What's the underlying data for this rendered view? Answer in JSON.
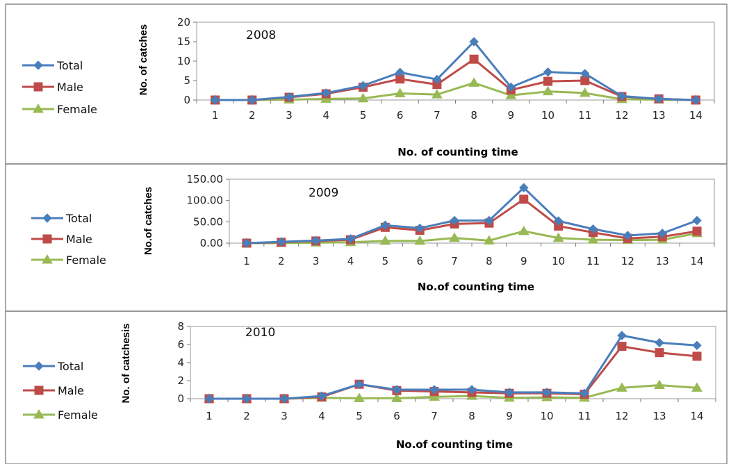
{
  "chart_data": [
    {
      "type": "line",
      "title": "2008",
      "xlabel": "No. of counting time",
      "ylabel": "No. of catches",
      "categories": [
        "1",
        "2",
        "3",
        "4",
        "5",
        "6",
        "7",
        "8",
        "9",
        "10",
        "11",
        "12",
        "13",
        "14"
      ],
      "ylim": [
        0,
        20
      ],
      "yticks": [
        "0",
        "5",
        "10",
        "15",
        "20"
      ],
      "grid": false,
      "legend_position": "left",
      "series": [
        {
          "name": "Total",
          "color": "#4a7ebb",
          "marker": "diamond",
          "values": [
            0,
            0,
            0.8,
            1.8,
            3.7,
            7.1,
            5.3,
            15.0,
            3.3,
            7.2,
            6.8,
            1.0,
            0.3,
            0
          ]
        },
        {
          "name": "Male",
          "color": "#be4b48",
          "marker": "square",
          "values": [
            0,
            0,
            0.7,
            1.6,
            3.3,
            5.4,
            4.0,
            10.5,
            2.6,
            4.8,
            5.0,
            0.9,
            0.3,
            0
          ]
        },
        {
          "name": "Female",
          "color": "#98b954",
          "marker": "triangle",
          "values": [
            0,
            0,
            0.1,
            0.3,
            0.4,
            1.7,
            1.4,
            4.4,
            1.2,
            2.2,
            1.8,
            0.2,
            0.1,
            0
          ]
        }
      ]
    },
    {
      "type": "line",
      "title": "2009",
      "xlabel": "No.of counting time",
      "ylabel": "No.of catches",
      "categories": [
        "1",
        "2",
        "3",
        "4",
        "5",
        "6",
        "7",
        "8",
        "9",
        "10",
        "11",
        "12",
        "13",
        "14"
      ],
      "ylim": [
        0,
        150
      ],
      "yticks": [
        "0.00",
        "50.00",
        "100.00",
        "150.00"
      ],
      "grid": false,
      "legend_position": "left",
      "series": [
        {
          "name": "Total",
          "color": "#4a7ebb",
          "marker": "diamond",
          "values": [
            0,
            3,
            6,
            10,
            42,
            35,
            53,
            53,
            130,
            52,
            33,
            18,
            23,
            53
          ]
        },
        {
          "name": "Male",
          "color": "#be4b48",
          "marker": "square",
          "values": [
            0,
            2,
            5,
            8,
            37,
            30,
            45,
            47,
            103,
            40,
            25,
            11,
            15,
            28
          ]
        },
        {
          "name": "Female",
          "color": "#98b954",
          "marker": "triangle",
          "values": [
            0,
            0,
            1,
            2,
            5,
            5,
            12,
            6,
            28,
            12,
            8,
            7,
            8,
            23
          ]
        }
      ]
    },
    {
      "type": "line",
      "title": "2010",
      "xlabel": "No.of counting time",
      "ylabel": "No. of catchesis",
      "categories": [
        "1",
        "2",
        "3",
        "4",
        "5",
        "6",
        "7",
        "8",
        "9",
        "10",
        "11",
        "12",
        "13",
        "14"
      ],
      "ylim": [
        0,
        8
      ],
      "yticks": [
        "0",
        "2",
        "4",
        "6",
        "8"
      ],
      "grid": false,
      "legend_position": "left",
      "series": [
        {
          "name": "Total",
          "color": "#4a7ebb",
          "marker": "diamond",
          "values": [
            0,
            0,
            0,
            0.3,
            1.6,
            1.0,
            1.0,
            1.0,
            0.7,
            0.7,
            0.6,
            7.0,
            6.2,
            5.9
          ]
        },
        {
          "name": "Male",
          "color": "#be4b48",
          "marker": "square",
          "values": [
            0,
            0,
            0,
            0.2,
            1.6,
            0.9,
            0.8,
            0.7,
            0.6,
            0.6,
            0.5,
            5.8,
            5.1,
            4.7
          ]
        },
        {
          "name": "Female",
          "color": "#98b954",
          "marker": "triangle",
          "values": [
            0,
            0,
            0,
            0.1,
            0.05,
            0.05,
            0.2,
            0.3,
            0.1,
            0.15,
            0.1,
            1.2,
            1.5,
            1.2
          ]
        }
      ]
    }
  ]
}
